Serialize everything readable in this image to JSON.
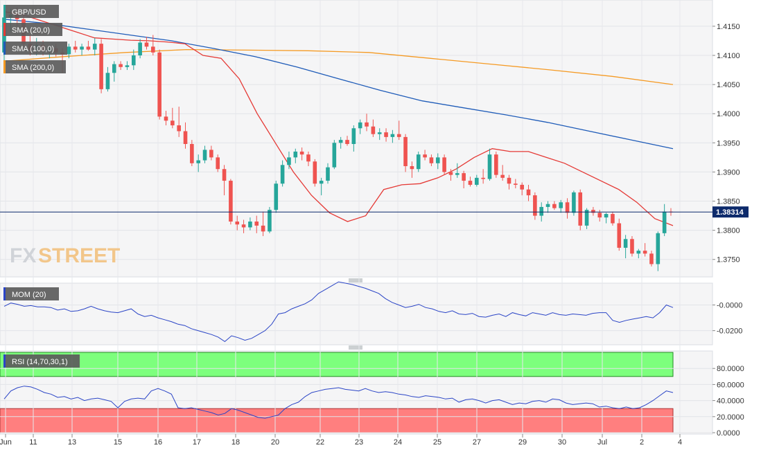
{
  "chart_data": [
    {
      "type": "candlestick",
      "pair": "GBP/USD",
      "ylim": [
        1.372,
        1.4195
      ],
      "y_ticks": [
        "1.4150",
        "1.4100",
        "1.4050",
        "1.4000",
        "1.3950",
        "1.3900",
        "1.3850",
        "1.3800",
        "1.3750"
      ],
      "x_ticks": [
        "Jun",
        "11",
        "13",
        "15",
        "16",
        "17",
        "18",
        "20",
        "22",
        "23",
        "24",
        "25",
        "27",
        "29",
        "30",
        "Jul",
        "2",
        "4"
      ],
      "current_price": "1.38314",
      "candles": [
        [
          1.4105,
          1.4175,
          1.4085,
          1.4165
        ],
        [
          1.4165,
          1.418,
          1.414,
          1.417
        ],
        [
          1.417,
          1.4182,
          1.415,
          1.4162
        ],
        [
          1.4162,
          1.4178,
          1.4115,
          1.412
        ],
        [
          1.412,
          1.4135,
          1.41,
          1.411
        ],
        [
          1.411,
          1.413,
          1.41,
          1.4118
        ],
        [
          1.4118,
          1.4125,
          1.41,
          1.4108
        ],
        [
          1.4108,
          1.4115,
          1.4095,
          1.4112
        ],
        [
          1.4112,
          1.412,
          1.4098,
          1.4105
        ],
        [
          1.4105,
          1.4112,
          1.407,
          1.4102
        ],
        [
          1.4102,
          1.412,
          1.4095,
          1.4115
        ],
        [
          1.4115,
          1.4125,
          1.4105,
          1.411
        ],
        [
          1.411,
          1.412,
          1.41,
          1.4115
        ],
        [
          1.4115,
          1.4125,
          1.4108,
          1.411
        ],
        [
          1.411,
          1.413,
          1.41,
          1.412
        ],
        [
          1.412,
          1.4128,
          1.4035,
          1.4042
        ],
        [
          1.4042,
          1.408,
          1.4038,
          1.407
        ],
        [
          1.407,
          1.409,
          1.4055,
          1.4085
        ],
        [
          1.4085,
          1.409,
          1.4075,
          1.408
        ],
        [
          1.408,
          1.409,
          1.4075,
          1.4083
        ],
        [
          1.4083,
          1.411,
          1.4075,
          1.41
        ],
        [
          1.41,
          1.4128,
          1.4095,
          1.4122
        ],
        [
          1.4122,
          1.4132,
          1.411,
          1.4115
        ],
        [
          1.4115,
          1.4135,
          1.41,
          1.4105
        ],
        [
          1.4105,
          1.411,
          1.399,
          1.3995
        ],
        [
          1.3995,
          1.4005,
          1.398,
          1.3988
        ],
        [
          1.3988,
          1.401,
          1.3975,
          1.398
        ],
        [
          1.398,
          1.4012,
          1.396,
          1.397
        ],
        [
          1.397,
          1.3985,
          1.394,
          1.3948
        ],
        [
          1.3948,
          1.3955,
          1.391,
          1.3915
        ],
        [
          1.3915,
          1.393,
          1.39,
          1.392
        ],
        [
          1.392,
          1.3945,
          1.3915,
          1.3938
        ],
        [
          1.3938,
          1.3945,
          1.392,
          1.3925
        ],
        [
          1.3925,
          1.393,
          1.39,
          1.3905
        ],
        [
          1.3905,
          1.3912,
          1.386,
          1.3885
        ],
        [
          1.3885,
          1.3888,
          1.381,
          1.3815
        ],
        [
          1.3815,
          1.3825,
          1.38,
          1.381
        ],
        [
          1.381,
          1.3818,
          1.3795,
          1.3805
        ],
        [
          1.3805,
          1.3822,
          1.38,
          1.3815
        ],
        [
          1.3815,
          1.3825,
          1.3795,
          1.3808
        ],
        [
          1.3808,
          1.3832,
          1.379,
          1.3798
        ],
        [
          1.3798,
          1.384,
          1.3795,
          1.3835
        ],
        [
          1.3835,
          1.3885,
          1.383,
          1.388
        ],
        [
          1.388,
          1.392,
          1.3875,
          1.3912
        ],
        [
          1.3912,
          1.3935,
          1.3905,
          1.3925
        ],
        [
          1.3925,
          1.394,
          1.3915,
          1.3935
        ],
        [
          1.3935,
          1.3942,
          1.392,
          1.393
        ],
        [
          1.393,
          1.3935,
          1.391,
          1.3918
        ],
        [
          1.3918,
          1.3922,
          1.3875,
          1.388
        ],
        [
          1.388,
          1.389,
          1.386,
          1.3885
        ],
        [
          1.3885,
          1.3915,
          1.388,
          1.3908
        ],
        [
          1.3908,
          1.3955,
          1.3905,
          1.395
        ],
        [
          1.395,
          1.396,
          1.394,
          1.3955
        ],
        [
          1.3955,
          1.3962,
          1.3945,
          1.3948
        ],
        [
          1.3948,
          1.398,
          1.3935,
          1.3975
        ],
        [
          1.3975,
          1.399,
          1.3965,
          1.3985
        ],
        [
          1.3985,
          1.4,
          1.397,
          1.3978
        ],
        [
          1.3978,
          1.399,
          1.396,
          1.3965
        ],
        [
          1.3965,
          1.3975,
          1.3955,
          1.3968
        ],
        [
          1.3968,
          1.3975,
          1.3952,
          1.396
        ],
        [
          1.396,
          1.3972,
          1.395,
          1.3965
        ],
        [
          1.3965,
          1.3988,
          1.3955,
          1.396
        ],
        [
          1.396,
          1.3965,
          1.39,
          1.391
        ],
        [
          1.391,
          1.3918,
          1.389,
          1.3905
        ],
        [
          1.3905,
          1.3935,
          1.39,
          1.393
        ],
        [
          1.393,
          1.3938,
          1.392,
          1.3925
        ],
        [
          1.3925,
          1.393,
          1.391,
          1.3915
        ],
        [
          1.3915,
          1.3932,
          1.3905,
          1.3925
        ],
        [
          1.3925,
          1.393,
          1.3895,
          1.39
        ],
        [
          1.39,
          1.3905,
          1.3885,
          1.3895
        ],
        [
          1.3895,
          1.3915,
          1.389,
          1.3898
        ],
        [
          1.3898,
          1.3902,
          1.3872,
          1.3885
        ],
        [
          1.3885,
          1.3892,
          1.3875,
          1.3878
        ],
        [
          1.3878,
          1.3895,
          1.3875,
          1.389
        ],
        [
          1.389,
          1.3905,
          1.388,
          1.3888
        ],
        [
          1.3888,
          1.394,
          1.3885,
          1.393
        ],
        [
          1.393,
          1.3935,
          1.389,
          1.3895
        ],
        [
          1.3895,
          1.3912,
          1.3885,
          1.389
        ],
        [
          1.389,
          1.3895,
          1.387,
          1.388
        ],
        [
          1.388,
          1.3888,
          1.3872,
          1.3878
        ],
        [
          1.3878,
          1.3882,
          1.386,
          1.387
        ],
        [
          1.387,
          1.3878,
          1.385,
          1.386
        ],
        [
          1.386,
          1.3865,
          1.3818,
          1.3825
        ],
        [
          1.3825,
          1.3848,
          1.3815,
          1.384
        ],
        [
          1.384,
          1.385,
          1.383,
          1.3845
        ],
        [
          1.3845,
          1.385,
          1.3835,
          1.3838
        ],
        [
          1.3838,
          1.3852,
          1.383,
          1.3848
        ],
        [
          1.3848,
          1.3855,
          1.382,
          1.383
        ],
        [
          1.383,
          1.3868,
          1.3825,
          1.3865
        ],
        [
          1.3865,
          1.387,
          1.38,
          1.3808
        ],
        [
          1.3808,
          1.3838,
          1.3802,
          1.3835
        ],
        [
          1.3835,
          1.384,
          1.3825,
          1.383
        ],
        [
          1.383,
          1.3835,
          1.3815,
          1.3822
        ],
        [
          1.3822,
          1.383,
          1.3812,
          1.3828
        ],
        [
          1.3828,
          1.3832,
          1.3808,
          1.3812
        ],
        [
          1.3812,
          1.382,
          1.3765,
          1.377
        ],
        [
          1.377,
          1.3792,
          1.3752,
          1.3785
        ],
        [
          1.3785,
          1.379,
          1.3755,
          1.376
        ],
        [
          1.376,
          1.3768,
          1.3752,
          1.3765
        ],
        [
          1.3765,
          1.3778,
          1.3755,
          1.376
        ],
        [
          1.376,
          1.3765,
          1.3738,
          1.3742
        ],
        [
          1.3742,
          1.3798,
          1.373,
          1.3795
        ],
        [
          1.3795,
          1.3845,
          1.379,
          1.3832
        ],
        [
          1.3832,
          1.3838,
          1.3825,
          1.3831
        ]
      ],
      "sma_20": [
        1.4175,
        1.417,
        1.416,
        1.415,
        1.414,
        1.413,
        1.4128,
        1.4126,
        1.4125,
        1.4123,
        1.412,
        1.41,
        1.4095,
        1.406,
        1.4,
        1.395,
        1.39,
        1.386,
        1.383,
        1.3815,
        1.3825,
        1.387,
        1.3878,
        1.388,
        1.389,
        1.3905,
        1.3925,
        1.394,
        1.3935,
        1.3935,
        1.3925,
        1.3915,
        1.39,
        1.3885,
        1.387,
        1.3848,
        1.382,
        1.3808
      ],
      "sma_100": [
        1.4162,
        1.4155,
        1.4145,
        1.4135,
        1.4125,
        1.4112,
        1.4098,
        1.408,
        1.406,
        1.404,
        1.4022,
        1.401,
        1.3998,
        1.3985,
        1.397,
        1.3955,
        1.394
      ],
      "sma_200": [
        1.409,
        1.4098,
        1.4105,
        1.411,
        1.4109,
        1.4108,
        1.4105,
        1.4095,
        1.4085,
        1.4075,
        1.4064,
        1.405
      ],
      "legend": [
        "GBP/USD",
        "SMA (20,0)",
        "SMA (100,0)",
        "SMA (200,0)"
      ],
      "colors": {
        "bull": "#26a69a",
        "bear": "#ef5350",
        "sma_20": "#e53935",
        "sma_100": "#1e5bb8",
        "sma_200": "#f59a23",
        "price_label": "#0d2a6b"
      }
    },
    {
      "type": "line",
      "indicator": "MOM (20)",
      "ylim": [
        -0.031,
        0.017
      ],
      "y_ticks": [
        "-0.0000",
        "-0.0200"
      ],
      "values": [
        -0.001,
        0.0015,
        0.0005,
        -0.001,
        -0.0005,
        -0.0015,
        -0.0015,
        -0.002,
        -0.004,
        -0.003,
        -0.005,
        -0.0045,
        -0.003,
        -0.001,
        -0.003,
        -0.0045,
        -0.0055,
        -0.006,
        -0.0045,
        -0.003,
        -0.007,
        -0.009,
        -0.008,
        -0.01,
        -0.0115,
        -0.013,
        -0.015,
        -0.016,
        -0.0185,
        -0.02,
        -0.0215,
        -0.023,
        -0.025,
        -0.0285,
        -0.024,
        -0.0255,
        -0.0275,
        -0.026,
        -0.023,
        -0.02,
        -0.015,
        -0.007,
        -0.006,
        -0.003,
        -0.001,
        0.001,
        0.004,
        0.009,
        0.012,
        0.015,
        0.018,
        0.017,
        0.016,
        0.0145,
        0.013,
        0.011,
        0.009,
        0.005,
        0.002,
        0.0,
        -0.002,
        -0.001,
        0.0005,
        -0.002,
        -0.003,
        -0.005,
        -0.006,
        -0.0045,
        -0.007,
        -0.0075,
        -0.0065,
        -0.009,
        -0.0095,
        -0.008,
        -0.007,
        -0.009,
        -0.006,
        -0.0075,
        -0.0085,
        -0.006,
        -0.007,
        -0.008,
        -0.006,
        -0.0075,
        -0.008,
        -0.007,
        -0.0075,
        -0.008,
        -0.0065,
        -0.006,
        -0.006,
        -0.012,
        -0.0135,
        -0.012,
        -0.011,
        -0.01,
        -0.009,
        -0.01,
        -0.006,
        0.0,
        -0.002
      ],
      "color": "#2a44c6"
    },
    {
      "type": "line",
      "indicator": "RSI (14,70,30,1)",
      "ylim": [
        0,
        100
      ],
      "y_ticks": [
        "80.0000",
        "60.0000",
        "40.0000",
        "20.0000",
        "0.0000"
      ],
      "overbought": 70,
      "oversold": 30,
      "values": [
        42,
        52,
        56,
        58,
        57,
        54,
        50,
        48,
        44,
        45,
        42,
        44,
        40,
        42,
        43,
        41,
        39,
        31,
        39,
        42,
        43,
        42,
        52,
        55,
        52,
        48,
        31,
        30,
        31,
        29,
        27,
        25,
        22,
        24,
        30,
        28,
        25,
        22,
        19,
        18,
        20,
        22,
        30,
        35,
        38,
        45,
        50,
        52,
        54,
        55,
        56,
        54,
        53,
        52,
        55,
        52,
        50,
        51,
        50,
        48,
        47,
        45,
        44,
        46,
        45,
        44,
        42,
        43,
        38,
        41,
        42,
        40,
        37,
        40,
        41,
        38,
        35,
        37,
        36,
        39,
        40,
        38,
        42,
        41,
        37,
        35,
        36,
        37,
        36,
        32,
        33,
        31,
        30,
        32,
        30,
        31,
        35,
        40,
        46,
        52,
        50
      ],
      "colors": {
        "line": "#2a44c6",
        "overbought_zone": "#7dff7d",
        "oversold_zone": "#ff7f7f"
      }
    }
  ]
}
